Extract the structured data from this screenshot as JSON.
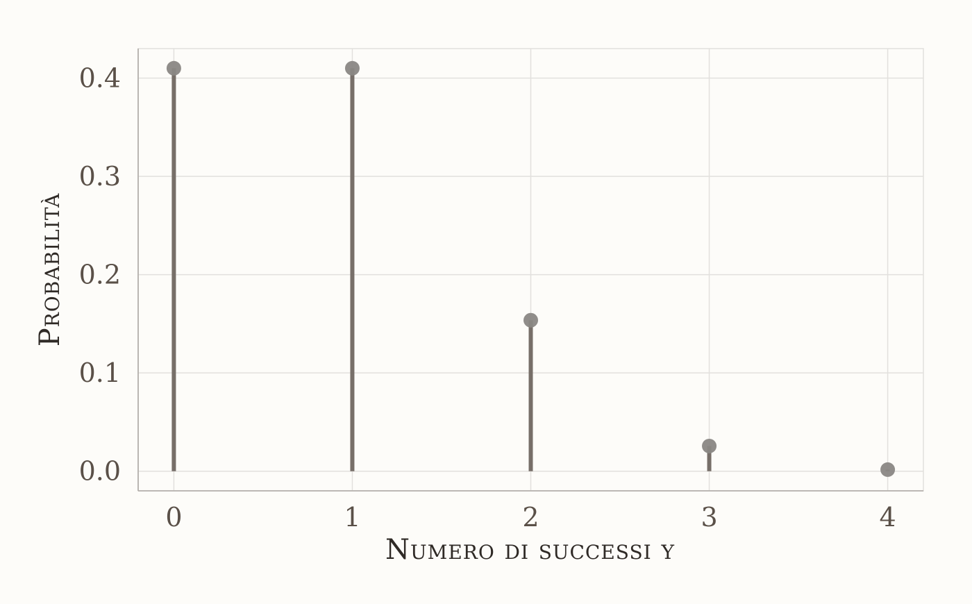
{
  "chart_data": {
    "type": "stem",
    "title": "",
    "xlabel": "Numero di successi y",
    "ylabel": "Probabilità",
    "x": [
      0,
      1,
      2,
      3,
      4
    ],
    "values": [
      0.41,
      0.41,
      0.1536,
      0.0256,
      0.0016
    ],
    "xlim": [
      -0.2,
      4.2
    ],
    "ylim": [
      -0.02,
      0.43
    ],
    "xticks": [
      0,
      1,
      2,
      3,
      4
    ],
    "xtick_labels": [
      "0",
      "1",
      "2",
      "3",
      "4"
    ],
    "yticks": [
      0.0,
      0.1,
      0.2,
      0.3,
      0.4
    ],
    "ytick_labels": [
      "0.0",
      "0.1",
      "0.2",
      "0.3",
      "0.4"
    ],
    "grid": true,
    "legend": "none",
    "colors": {
      "background": "#fdfcf9",
      "grid": "#e2e0dd",
      "axis": "#b4b0ac",
      "stem": "#776f69",
      "point": "#8a8784",
      "tick_text": "#5a5048",
      "title_text": "#2f2a26"
    }
  }
}
